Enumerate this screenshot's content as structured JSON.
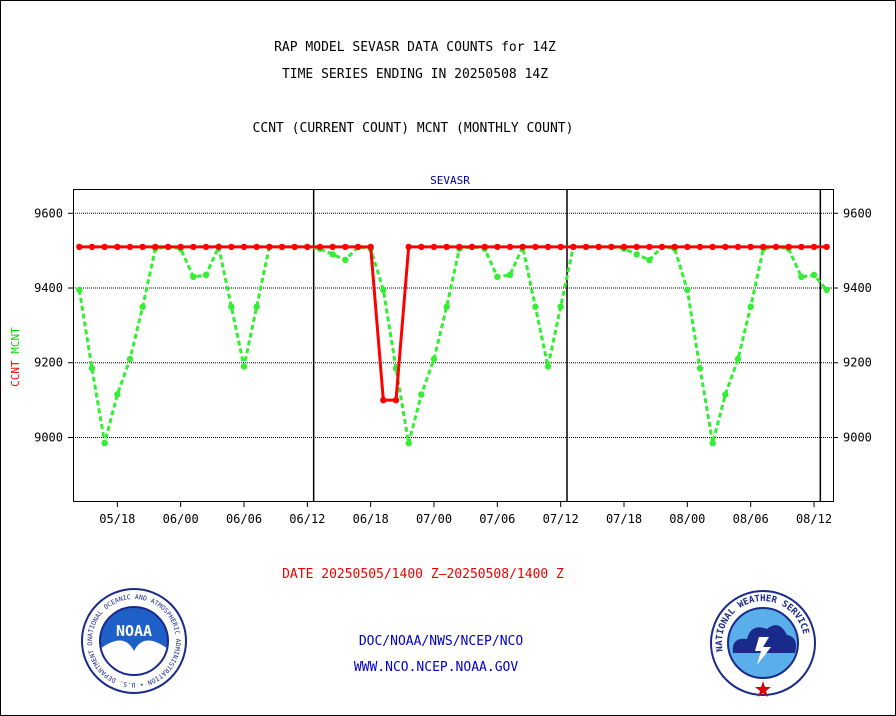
{
  "header": {
    "title_line1": "RAP MODEL SEVASR DATA COUNTS for 14Z",
    "title_line2": "TIME SERIES ENDING IN 20250508 14Z",
    "subtitle": "CCNT (CURRENT COUNT) MCNT (MONTHLY COUNT)"
  },
  "footer": {
    "date_range": "DATE 20250505/1400 Z–20250508/1400 Z",
    "link1": "DOC/NOAA/NWS/NCEP/NCO",
    "link2": "WWW.NCO.NCEP.NOAA.GOV"
  },
  "logos": {
    "noaa_text": "NOAA",
    "noaa_ring": "NATIONAL OCEANIC AND ATMOSPHERIC ADMINISTRATION • U.S. DEPARTMENT OF COMMERCE",
    "nws_ring": "NATIONAL WEATHER SERVICE"
  },
  "colors": {
    "ccnt": "#ff0000",
    "mcnt": "#33ee33",
    "title": "#000000",
    "footer_date": "#ee0000",
    "footer_links": "#0000cc",
    "plot_label": "#0000aa"
  },
  "chart_data": {
    "type": "line",
    "plot_label": "SEVASR",
    "ylabel_parts": [
      {
        "text": "CCNT",
        "color": "#ff0000"
      },
      {
        "text": "MCNT",
        "color": "#00dd00"
      }
    ],
    "x_ticks": [
      {
        "x": 3,
        "label": "05/18"
      },
      {
        "x": 8,
        "label": "06/00"
      },
      {
        "x": 13,
        "label": "06/06"
      },
      {
        "x": 18,
        "label": "06/12"
      },
      {
        "x": 23,
        "label": "06/18"
      },
      {
        "x": 28,
        "label": "07/00"
      },
      {
        "x": 33,
        "label": "07/06"
      },
      {
        "x": 38,
        "label": "07/12"
      },
      {
        "x": 43,
        "label": "07/18"
      },
      {
        "x": 48,
        "label": "08/00"
      },
      {
        "x": 53,
        "label": "08/06"
      },
      {
        "x": 58,
        "label": "08/12"
      }
    ],
    "day_boundaries": [
      18.5,
      38.5,
      58.5
    ],
    "xlim": [
      -0.5,
      59.5
    ],
    "ylim": [
      8830,
      9665
    ],
    "y_ticks": [
      9000,
      9200,
      9400,
      9600
    ],
    "y_gridlines": [
      9000,
      9200,
      9400,
      9600
    ],
    "series": [
      {
        "name": "CCNT",
        "color": "#ff0000",
        "values": [
          9510,
          9510,
          9510,
          9510,
          9510,
          9510,
          9510,
          9510,
          9510,
          9510,
          9510,
          9510,
          9510,
          9510,
          9510,
          9510,
          9510,
          9510,
          9510,
          9510,
          9510,
          9510,
          9510,
          9510,
          9100,
          9100,
          9510,
          9510,
          9510,
          9510,
          9510,
          9510,
          9510,
          9510,
          9510,
          9510,
          9510,
          9510,
          9510,
          9510,
          9510,
          9510,
          9510,
          9510,
          9510,
          9510,
          9510,
          9510,
          9510,
          9510,
          9510,
          9510,
          9510,
          9510,
          9510,
          9510,
          9510,
          9510,
          9510,
          9510
        ]
      },
      {
        "name": "MCNT",
        "color": "#33ee33",
        "values": [
          9395,
          9185,
          8985,
          9115,
          9210,
          9350,
          9505,
          9510,
          9505,
          9430,
          9435,
          9510,
          9350,
          9190,
          9350,
          9510,
          9510,
          9510,
          9510,
          9505,
          9490,
          9475,
          9510,
          9505,
          9395,
          9185,
          8985,
          9115,
          9210,
          9350,
          9505,
          9510,
          9505,
          9430,
          9435,
          9510,
          9350,
          9190,
          9350,
          9510,
          9510,
          9510,
          9510,
          9505,
          9490,
          9475,
          9510,
          9505,
          9395,
          9185,
          8985,
          9115,
          9210,
          9350,
          9505,
          9510,
          9505,
          9430,
          9435,
          9395
        ]
      }
    ]
  }
}
